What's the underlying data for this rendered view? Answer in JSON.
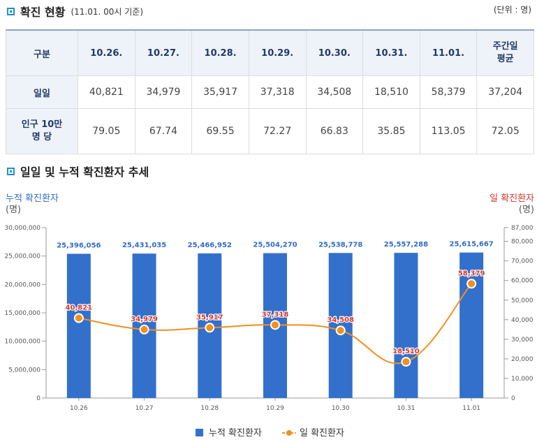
{
  "section1": {
    "title": "확진 현황",
    "subtitle": "(11.01. 00시 기준)",
    "unit": "(단위 : 명)"
  },
  "table": {
    "corner": "구분",
    "headers": [
      "10.26.",
      "10.27.",
      "10.28.",
      "10.29.",
      "10.30.",
      "10.31.",
      "11.01.",
      "주간일\n평균"
    ],
    "rows": [
      {
        "label": "일일",
        "values": [
          "40,821",
          "34,979",
          "35,917",
          "37,318",
          "34,508",
          "18,510",
          "58,379",
          "37,204"
        ]
      },
      {
        "label": "인구 10만\n명 당",
        "values": [
          "79.05",
          "67.74",
          "69.55",
          "72.27",
          "66.83",
          "35.85",
          "113.05",
          "72.05"
        ]
      }
    ]
  },
  "section2": {
    "title": "일일 및 누적 확진환자 추세"
  },
  "colors": {
    "bar": "#3370cc",
    "line": "#f0901e",
    "bar_label": "#2f6bc8",
    "line_label": "#d9342b",
    "left_axis_title": "#2f6bc8",
    "right_axis_title": "#d9342b"
  },
  "chart_data": {
    "type": "bar",
    "categories": [
      "10.26",
      "10.27",
      "10.28",
      "10.29",
      "10.30",
      "10.31",
      "11.01"
    ],
    "series": [
      {
        "name": "누적 확진환자",
        "type": "bar",
        "axis": "left",
        "values": [
          25396056,
          25431035,
          25466952,
          25504270,
          25538778,
          25557288,
          25615667
        ],
        "labels": [
          "25,396,056",
          "25,431,035",
          "25,466,952",
          "25,504,270",
          "25,538,778",
          "25,557,288",
          "25,615,667"
        ]
      },
      {
        "name": "일 확진환자",
        "type": "line",
        "axis": "right",
        "values": [
          40821,
          34979,
          35917,
          37318,
          34508,
          18510,
          58379
        ],
        "labels": [
          "40,821",
          "34,979",
          "35,917",
          "37,318",
          "34,508",
          "18,510",
          "58,379"
        ]
      }
    ],
    "left_axis": {
      "title": "누적 확진환자",
      "unit": "(명)",
      "ticks": [
        0,
        5000000,
        10000000,
        15000000,
        20000000,
        25000000,
        30000000
      ],
      "tick_labels": [
        "0",
        "5,000,000",
        "10,000,000",
        "15,000,000",
        "20,000,000",
        "25,000,000",
        "30,000,000"
      ],
      "range": [
        0,
        30000000
      ]
    },
    "right_axis": {
      "title": "일 확진환자",
      "unit": "(명)",
      "ticks": [
        0,
        10000,
        20000,
        30000,
        40000,
        50000,
        60000,
        70000,
        80000,
        87000
      ],
      "tick_labels": [
        "0",
        "10,000",
        "20,000",
        "30,000",
        "40,000",
        "50,000",
        "60,000",
        "70,000",
        "80,000",
        "87,000"
      ],
      "range": [
        0,
        87000
      ]
    },
    "legend": {
      "position": "bottom",
      "items": [
        "누적 확진환자",
        "일 확진환자"
      ]
    }
  }
}
